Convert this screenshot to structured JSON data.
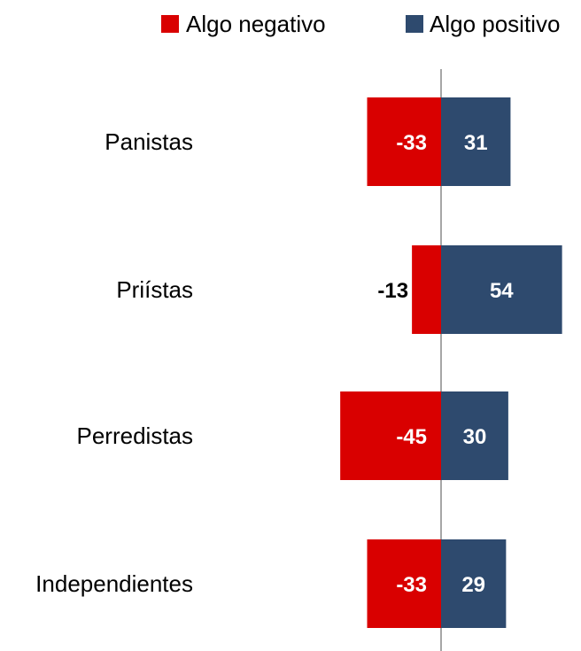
{
  "chart_data": {
    "type": "bar",
    "orientation": "horizontal",
    "stacked": "diverging",
    "categories": [
      "Panistas",
      "Priístas",
      "Perredistas",
      "Independientes"
    ],
    "series": [
      {
        "name": "Algo negativo",
        "values": [
          -33,
          -13,
          -45,
          -33
        ],
        "color": "#d90000"
      },
      {
        "name": "Algo positivo",
        "values": [
          31,
          54,
          30,
          29
        ],
        "color": "#2e4a6e"
      }
    ],
    "value_labels": {
      "neg": [
        "-33",
        "-13",
        "-45",
        "-33"
      ],
      "pos": [
        "31",
        "54",
        "30",
        "29"
      ]
    },
    "xlim": [
      -60,
      60
    ],
    "grid": false,
    "legend_position": "top-right",
    "title": "",
    "xlabel": "",
    "ylabel": ""
  },
  "legend": {
    "items": [
      {
        "label": "Algo negativo",
        "color": "#d90000"
      },
      {
        "label": "Algo positivo",
        "color": "#2e4a6e"
      }
    ]
  }
}
